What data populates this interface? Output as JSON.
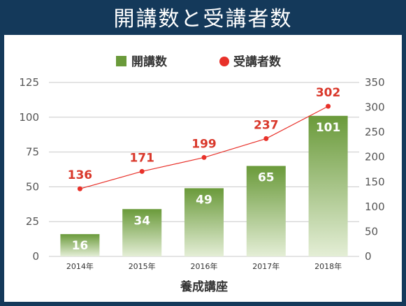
{
  "title": "開講数と受講者数",
  "chart_data": {
    "type": "bar",
    "categories": [
      "2014年",
      "2015年",
      "2016年",
      "2017年",
      "2018年"
    ],
    "series": [
      {
        "name": "開講数",
        "type": "bar",
        "axis": "left",
        "values": [
          16,
          34,
          49,
          65,
          101
        ]
      },
      {
        "name": "受講者数",
        "type": "line",
        "axis": "right",
        "values": [
          136,
          171,
          199,
          237,
          302
        ]
      }
    ],
    "xlabel": "養成講座",
    "y_left": {
      "ylim": [
        0,
        125
      ],
      "ticks": [
        "0",
        "25",
        "50",
        "75",
        "100",
        "125"
      ]
    },
    "y_right": {
      "ylim": [
        0,
        350
      ],
      "ticks": [
        "0",
        "50",
        "100",
        "150",
        "200",
        "250",
        "300",
        "350"
      ]
    },
    "grid": true,
    "legend_position": "top-center",
    "colors": {
      "bar_top": "#6a9a3a",
      "bar_bottom": "#e4eed6",
      "line": "#e8312a",
      "label_red": "#d9382b",
      "grid": "#c8c8c8",
      "tick": "#555555"
    }
  }
}
